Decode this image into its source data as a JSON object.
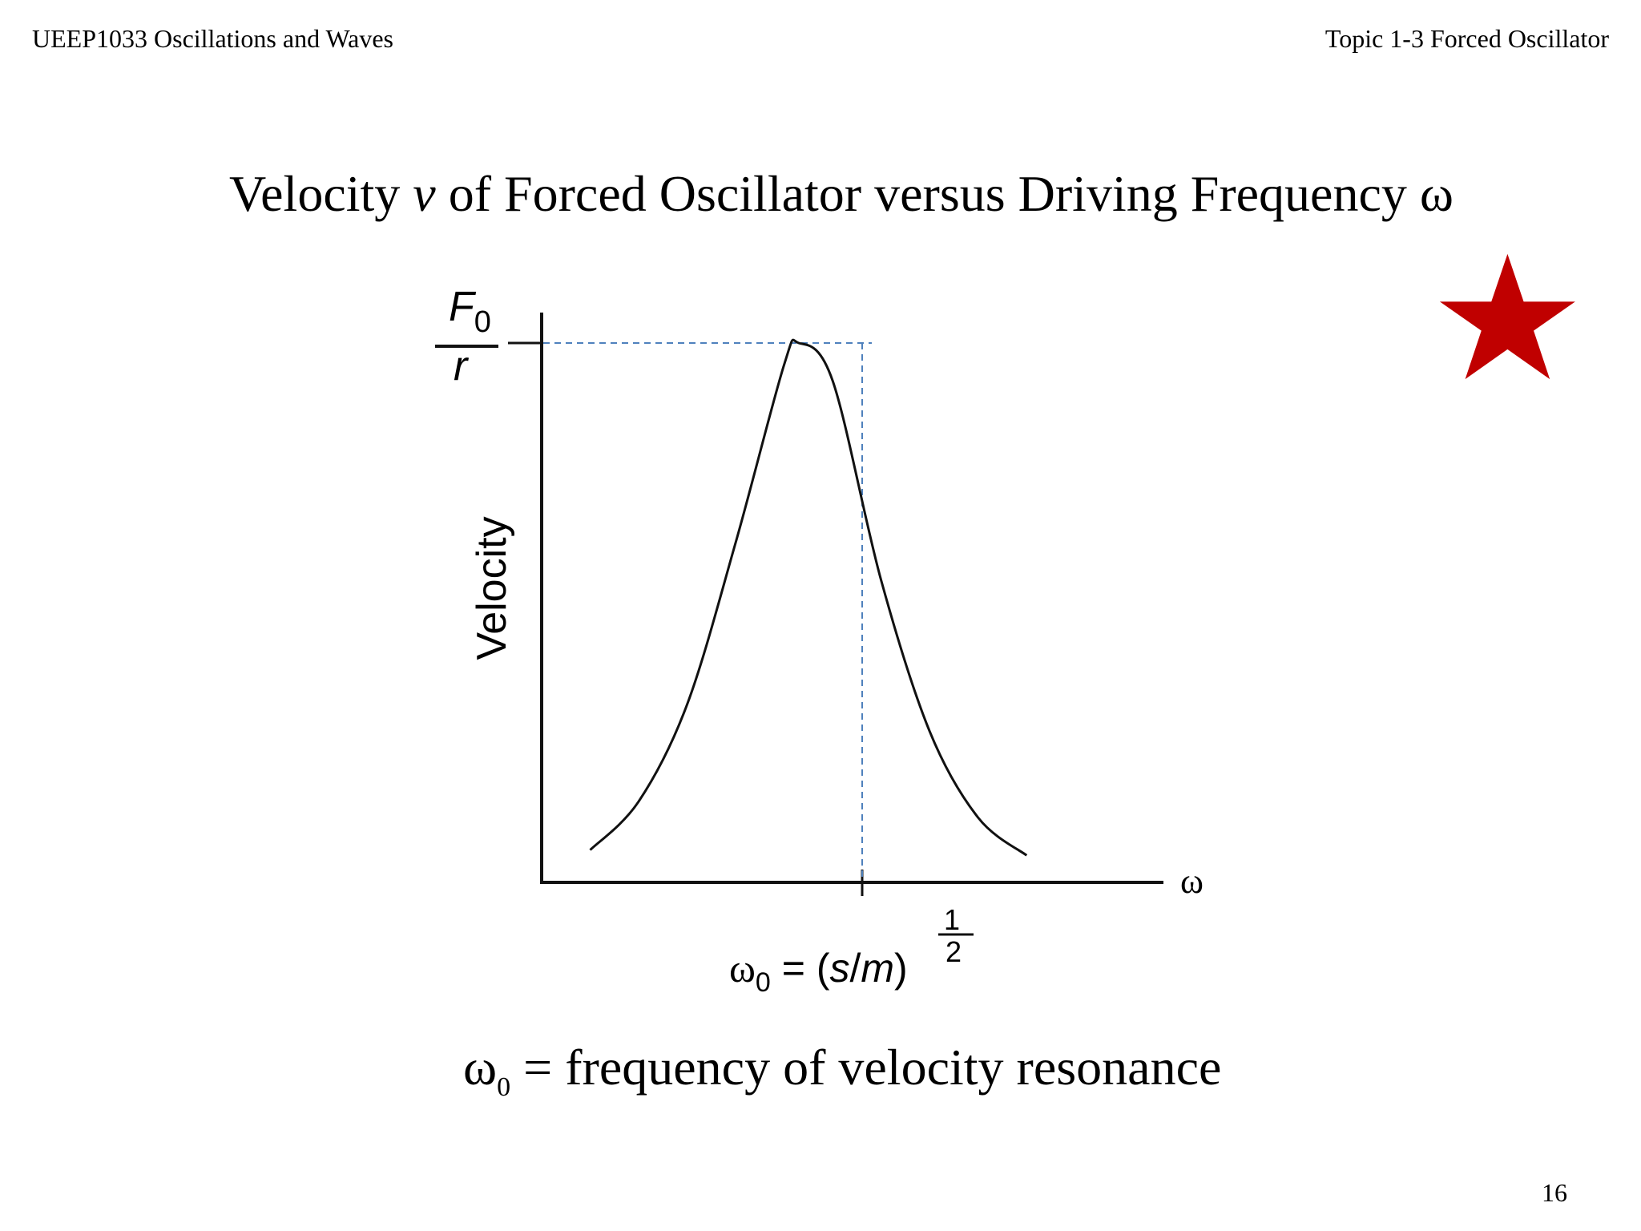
{
  "header": {
    "course": "UEEP1033 Oscillations and Waves",
    "topic": "Topic 1-3 Forced Oscillator"
  },
  "slide": {
    "title_part1": "Velocity ",
    "title_variable": "v",
    "title_part2": " of Forced Oscillator versus Driving Frequency ω",
    "caption_symbol": "ω",
    "caption_subscript": "0",
    "caption_text": " = frequency of velocity resonance",
    "page_number": "16"
  },
  "colors": {
    "star": "#c00000",
    "curve": "#111111",
    "guide": "#4f81bd"
  },
  "icons": [
    "star-icon"
  ],
  "chart_data": {
    "type": "line",
    "title": "",
    "xlabel": "ω",
    "ylabel": "Velocity",
    "y_max_label": {
      "numerator": "F",
      "numerator_subscript": "0",
      "denominator": "r"
    },
    "resonance_label": {
      "symbol": "ω",
      "subscript": "0",
      "equals": " = (",
      "s": "s",
      "slash": "/",
      "m": "m",
      "close": ")",
      "exp_numerator": "1",
      "exp_denominator": "2"
    },
    "curve": "resonance peak",
    "relative_peak_position": 0.53,
    "series": [
      {
        "x": [
          0.1,
          0.2,
          0.3,
          0.4,
          0.5,
          0.53,
          0.6,
          0.7,
          0.8,
          0.9,
          1.0
        ],
        "values": [
          0.06,
          0.15,
          0.33,
          0.63,
          0.96,
          1.0,
          0.93,
          0.56,
          0.28,
          0.12,
          0.05
        ]
      }
    ],
    "ylim": [
      0,
      1
    ],
    "grid": false,
    "legend": "none"
  }
}
